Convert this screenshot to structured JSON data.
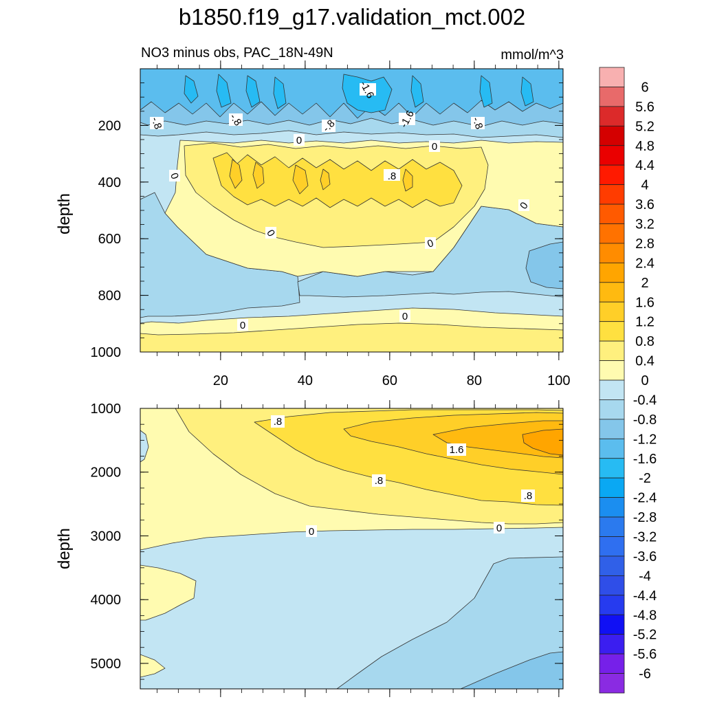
{
  "title": "b1850.f19_g17.validation_mct.002",
  "chart_data": {
    "type": "contour",
    "subtitle": "NO3 minus obs, PAC_18N-49N",
    "units": "mmol/m^3",
    "x_axis": {
      "range": [
        1,
        101
      ],
      "ticks": [
        20,
        40,
        60,
        80,
        100
      ]
    },
    "upper_panel": {
      "ylabel": "depth",
      "ylim": [
        0,
        1000
      ],
      "yticks": [
        200,
        400,
        600,
        800,
        1000
      ]
    },
    "lower_panel": {
      "ylabel": "depth",
      "ylim": [
        1000,
        5400
      ],
      "yticks": [
        1000,
        2000,
        3000,
        4000,
        5000
      ]
    },
    "colorbar": {
      "labels": [
        "6",
        "5.6",
        "5.2",
        "4.8",
        "4.4",
        "4",
        "3.6",
        "3.2",
        "2.8",
        "2.4",
        "2",
        "1.6",
        "1.2",
        "0.8",
        "0.4",
        "0",
        "-0.4",
        "-0.8",
        "-1.2",
        "-1.6",
        "-2",
        "-2.4",
        "-2.8",
        "-3.2",
        "-3.6",
        "-4",
        "-4.4",
        "-4.8",
        "-5.2",
        "-5.6",
        "-6"
      ],
      "colors": [
        "#f8b0b0",
        "#e86a6a",
        "#dc2a2a",
        "#d40000",
        "#ea0000",
        "#ff1a00",
        "#ff3c00",
        "#ff5a00",
        "#ff7200",
        "#ff8c00",
        "#ffa500",
        "#ffba10",
        "#ffcf28",
        "#ffe040",
        "#fff07e",
        "#fffbb0",
        "#c2e5f3",
        "#a7d8ee",
        "#84c6ea",
        "#5bbdee",
        "#27bbf3",
        "#0aa8f3",
        "#1b8ef0",
        "#2b7aee",
        "#2f6ff0",
        "#3060e8",
        "#2f4ee8",
        "#263bef",
        "#1010f4",
        "#3b1ef0",
        "#7620e9",
        "#8a2be2"
      ]
    },
    "annotations": [
      "-1.6",
      "-1.6",
      "-.8",
      "-.8",
      "-.8",
      "-.8",
      "0",
      "0",
      "0",
      "0",
      "0",
      "0",
      "0",
      "0",
      ".8",
      ".8",
      ".8",
      ".8",
      "1.6",
      "0",
      "0"
    ]
  }
}
